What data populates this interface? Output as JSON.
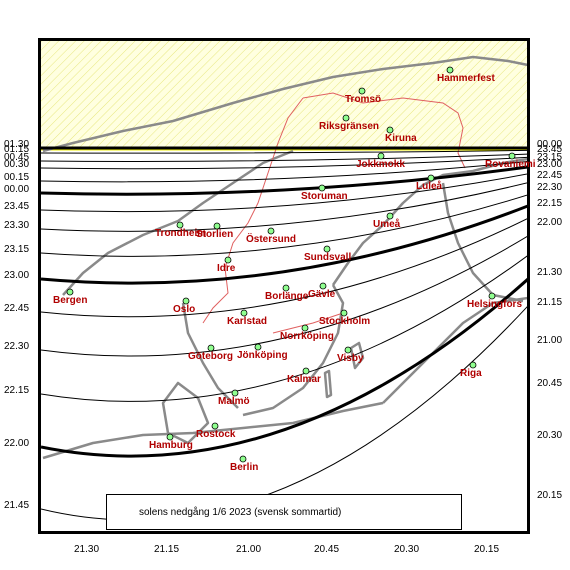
{
  "caption": "solens nedgång   1/6 2023   (svensk sommartid)",
  "left_labels": [
    "01.30",
    "01.15",
    "00.45",
    "00.30",
    "00.15",
    "00.00",
    "23.45",
    "23.30",
    "23.15",
    "23.00",
    "22.45",
    "22.30",
    "22.15",
    "22.00",
    "21.45"
  ],
  "right_labels": [
    "00.00",
    "23.45",
    "23.15",
    "23.00",
    "22.45",
    "22.30",
    "22.15",
    "22.00",
    "21.30",
    "21.15",
    "21.00",
    "20.45",
    "20.30",
    "20.15"
  ],
  "bottom_labels": [
    "21.30",
    "21.15",
    "21.00",
    "20.45",
    "20.30",
    "20.15"
  ],
  "cities": [
    {
      "name": "Hammerfest"
    },
    {
      "name": "Tromsö"
    },
    {
      "name": "Riksgränsen"
    },
    {
      "name": "Kiruna"
    },
    {
      "name": "Jokkmokk"
    },
    {
      "name": "Rovaniemi"
    },
    {
      "name": "Luleå"
    },
    {
      "name": "Storuman"
    },
    {
      "name": "Umeå"
    },
    {
      "name": "Trondheim"
    },
    {
      "name": "Storlien"
    },
    {
      "name": "Östersund"
    },
    {
      "name": "Sundsvall"
    },
    {
      "name": "Idre"
    },
    {
      "name": "Bergen"
    },
    {
      "name": "Gävle"
    },
    {
      "name": "Borlänge"
    },
    {
      "name": "Helsingfors"
    },
    {
      "name": "Oslo"
    },
    {
      "name": "Karlstad"
    },
    {
      "name": "Stockholm"
    },
    {
      "name": "Norrköping"
    },
    {
      "name": "Göteborg"
    },
    {
      "name": "Jönköping"
    },
    {
      "name": "Visby"
    },
    {
      "name": "Riga"
    },
    {
      "name": "Kalmar"
    },
    {
      "name": "Malmö"
    },
    {
      "name": "Rostock"
    },
    {
      "name": "Hamburg"
    },
    {
      "name": "Berlin"
    }
  ],
  "colors": {
    "arctic_fill": "#ffffc0",
    "arctic_line": "#f0f000",
    "land": "#888888",
    "border": "#e06060",
    "city": "#b00000",
    "marker": "#90ff90"
  }
}
